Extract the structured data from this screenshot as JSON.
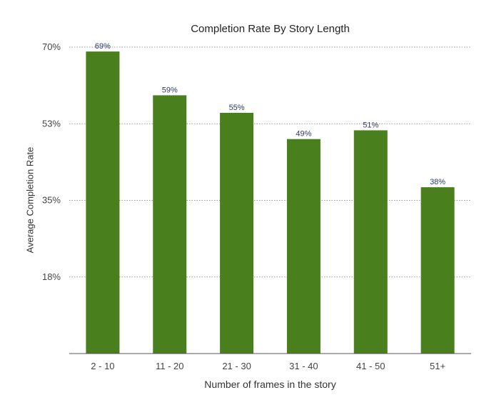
{
  "chart_data": {
    "type": "bar",
    "title": "Completion Rate By Story Length",
    "xlabel": "Number of frames in the story",
    "ylabel": "Average Completion Rate",
    "categories": [
      "2 - 10",
      "11 - 20",
      "21 - 30",
      "31 - 40",
      "41 - 50",
      "51+"
    ],
    "values": [
      69,
      59,
      55,
      49,
      51,
      38
    ],
    "data_labels": [
      "69%",
      "59%",
      "55%",
      "49%",
      "51%",
      "38%"
    ],
    "yticks": [
      {
        "value": 17.5,
        "label": "18%"
      },
      {
        "value": 35,
        "label": "35%"
      },
      {
        "value": 52.5,
        "label": "53%"
      },
      {
        "value": 70,
        "label": "70%"
      }
    ],
    "ylim": [
      0,
      70
    ],
    "grid": "dotted horizontal",
    "legend": "none",
    "colors": {
      "bar": "#4a7f1e",
      "data_label": "#2a3a6a",
      "grid": "#999999",
      "axis": "#555555",
      "tick_label": "#444444"
    }
  }
}
